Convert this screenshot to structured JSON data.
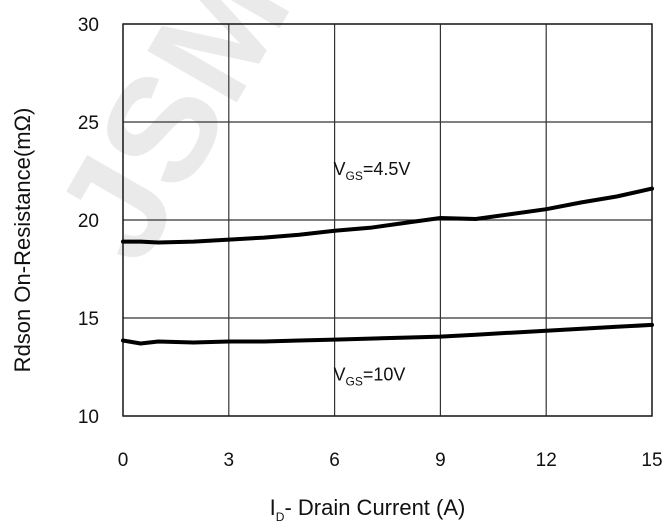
{
  "chart_data": {
    "type": "line",
    "xlabel": {
      "main": "I",
      "sub": "D",
      "rest": "- Drain Current (A)"
    },
    "ylabel": "Rdson On-Resistance(mΩ)",
    "xlim": [
      0,
      15
    ],
    "ylim": [
      10,
      30
    ],
    "x_ticks": [
      "0",
      "3",
      "6",
      "9",
      "12",
      "15"
    ],
    "y_ticks": [
      "10",
      "15",
      "20",
      "25",
      "30"
    ],
    "grid": true,
    "series": [
      {
        "name": {
          "main": "V",
          "sub": "GS",
          "rest": "=4.5V"
        },
        "x": [
          0,
          0.5,
          1,
          2,
          3,
          4,
          5,
          6,
          7,
          8,
          9,
          10,
          11,
          12,
          13,
          14,
          15
        ],
        "y": [
          18.9,
          18.9,
          18.85,
          18.9,
          19.0,
          19.1,
          19.25,
          19.45,
          19.6,
          19.85,
          20.1,
          20.05,
          20.3,
          20.55,
          20.9,
          21.2,
          21.6
        ],
        "label_at": [
          7.5,
          22.3
        ]
      },
      {
        "name": {
          "main": "V",
          "sub": "GS",
          "rest": "=10V"
        },
        "x": [
          0,
          0.5,
          1,
          2,
          3,
          4,
          5,
          6,
          7,
          8,
          9,
          10,
          11,
          12,
          13,
          14,
          15
        ],
        "y": [
          13.85,
          13.7,
          13.8,
          13.75,
          13.8,
          13.8,
          13.85,
          13.9,
          13.95,
          14.0,
          14.05,
          14.15,
          14.25,
          14.35,
          14.45,
          14.55,
          14.65
        ],
        "label_at": [
          7.5,
          11.8
        ]
      }
    ],
    "watermark": "JSMT"
  }
}
